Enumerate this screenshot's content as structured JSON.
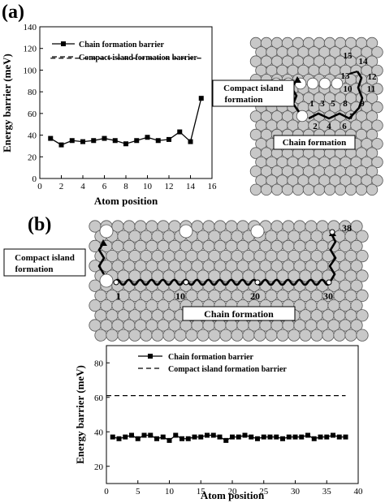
{
  "panels": {
    "a": {
      "label": "(a)",
      "diagram": {
        "numbers": [
          "1",
          "2",
          "3",
          "4",
          "5",
          "6",
          "7",
          "8",
          "9",
          "10",
          "11",
          "12",
          "13",
          "14",
          "15"
        ],
        "compact_label_line1": "Compact island",
        "compact_label_line2": "formation",
        "chain_label": "Chain formation"
      }
    },
    "b": {
      "label": "(b)",
      "diagram": {
        "numbers": [
          "1",
          "10",
          "20",
          "30",
          "38"
        ],
        "compact_label_line1": "Compact island",
        "compact_label_line2": "formation",
        "chain_label": "Chain formation"
      }
    }
  },
  "chart_data": [
    {
      "panel": "a",
      "type": "line",
      "xlabel": "Atom position",
      "ylabel": "Energy barrier (meV)",
      "xlim": [
        0,
        16
      ],
      "ylim": [
        0,
        140
      ],
      "xticks": [
        0,
        2,
        4,
        6,
        8,
        10,
        12,
        14,
        16
      ],
      "yticks": [
        0,
        20,
        40,
        60,
        80,
        100,
        120,
        140
      ],
      "legend_position": "top",
      "series": [
        {
          "name": "Chain formation barrier",
          "style": "solid line with square markers",
          "x": [
            1,
            2,
            3,
            4,
            5,
            6,
            7,
            8,
            9,
            10,
            11,
            12,
            13,
            14,
            15
          ],
          "y": [
            37,
            31,
            35,
            34,
            35,
            37,
            35,
            32,
            35,
            38,
            35,
            36,
            43,
            34,
            74
          ]
        },
        {
          "name": "Compact island formation barrier",
          "style": "dashed line",
          "x": [
            1,
            15
          ],
          "y": [
            111,
            111
          ]
        }
      ]
    },
    {
      "panel": "b",
      "type": "line",
      "xlabel": "Atom position",
      "ylabel": "Energy barrier (meV)",
      "xlim": [
        0,
        40
      ],
      "ylim": [
        10,
        90
      ],
      "xticks": [
        0,
        5,
        10,
        15,
        20,
        25,
        30,
        35,
        40
      ],
      "yticks": [
        20,
        40,
        60,
        80
      ],
      "legend_position": "top",
      "series": [
        {
          "name": "Chain formation barrier",
          "style": "solid line with square markers",
          "x": [
            1,
            2,
            3,
            4,
            5,
            6,
            7,
            8,
            9,
            10,
            11,
            12,
            13,
            14,
            15,
            16,
            17,
            18,
            19,
            20,
            21,
            22,
            23,
            24,
            25,
            26,
            27,
            28,
            29,
            30,
            31,
            32,
            33,
            34,
            35,
            36,
            37,
            38
          ],
          "y": [
            37,
            36,
            37,
            38,
            36,
            38,
            38,
            36,
            37,
            35,
            38,
            36,
            36,
            37,
            37,
            38,
            38,
            37,
            35,
            37,
            37,
            38,
            37,
            36,
            37,
            37,
            37,
            36,
            37,
            37,
            37,
            38,
            36,
            37,
            37,
            38,
            37,
            37
          ]
        },
        {
          "name": "Compact island formation barrier",
          "style": "dashed line",
          "x": [
            0,
            38
          ],
          "y": [
            61,
            61
          ]
        }
      ]
    }
  ]
}
